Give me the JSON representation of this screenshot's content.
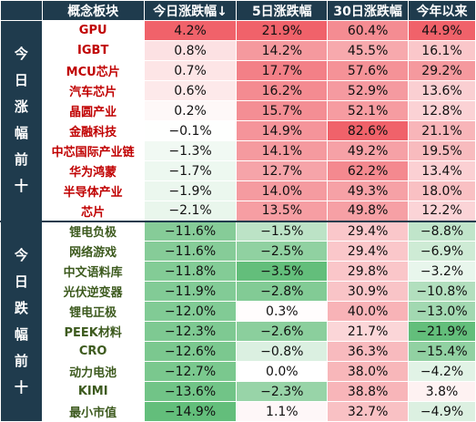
{
  "chart_data": {
    "type": "table",
    "columns": [
      "概念板块",
      "今日涨跌幅↓",
      "5日涨跌幅",
      "30日涨跌幅",
      "今年以来"
    ],
    "groups": [
      {
        "label": [
          "今",
          "日",
          "涨",
          "幅",
          "前",
          "十"
        ],
        "name_color": "#c00000",
        "rows": [
          {
            "name": "GPU",
            "values": [
              4.2,
              21.9,
              60.4,
              44.9
            ]
          },
          {
            "name": "IGBT",
            "values": [
              0.8,
              14.2,
              45.5,
              16.1
            ]
          },
          {
            "name": "MCU芯片",
            "values": [
              0.7,
              17.7,
              57.6,
              29.2
            ]
          },
          {
            "name": "汽车芯片",
            "values": [
              0.6,
              16.2,
              52.9,
              13.6
            ]
          },
          {
            "name": "晶圆产业",
            "values": [
              0.2,
              15.7,
              52.1,
              12.8
            ]
          },
          {
            "name": "金融科技",
            "values": [
              -0.1,
              14.9,
              82.6,
              21.1
            ]
          },
          {
            "name": "中芯国际产业链",
            "values": [
              -1.3,
              14.1,
              49.2,
              19.5
            ]
          },
          {
            "name": "华为鸿蒙",
            "values": [
              -1.7,
              12.7,
              62.2,
              13.4
            ]
          },
          {
            "name": "半导体产业",
            "values": [
              -1.9,
              14.0,
              49.3,
              18.0
            ]
          },
          {
            "name": "芯片",
            "values": [
              -2.1,
              13.5,
              49.8,
              12.2
            ]
          }
        ]
      },
      {
        "label": [
          "今",
          "日",
          "跌",
          "幅",
          "前",
          "十"
        ],
        "name_color": "#3d5a1e",
        "rows": [
          {
            "name": "锂电负极",
            "values": [
              -11.6,
              -1.5,
              29.4,
              -8.8
            ]
          },
          {
            "name": "网络游戏",
            "values": [
              -11.6,
              -2.5,
              29.4,
              -6.9
            ]
          },
          {
            "name": "中文语料库",
            "values": [
              -11.8,
              -3.5,
              29.8,
              -3.2
            ]
          },
          {
            "name": "光伏逆变器",
            "values": [
              -11.9,
              -2.8,
              30.9,
              -10.8
            ]
          },
          {
            "name": "锂电正极",
            "values": [
              -12.0,
              0.3,
              40.0,
              -13.0
            ]
          },
          {
            "name": "PEEK材料",
            "values": [
              -12.3,
              -2.6,
              21.7,
              -21.9
            ]
          },
          {
            "name": "CRO",
            "values": [
              -12.6,
              -0.8,
              36.3,
              -15.4
            ]
          },
          {
            "name": "动力电池",
            "values": [
              -12.7,
              0.0,
              38.0,
              -4.2
            ]
          },
          {
            "name": "KIMI",
            "values": [
              -13.6,
              -2.3,
              38.8,
              3.8
            ]
          },
          {
            "name": "最小市值",
            "values": [
              -14.9,
              1.1,
              32.7,
              -4.9
            ]
          }
        ]
      }
    ],
    "value_format": "percent_1dp",
    "colors": {
      "header_bg": "#1f3b4d",
      "header_text": "#ffffff",
      "positive_max": "#f0626a",
      "negative_max": "#63be7b",
      "neutral": "#ffffff"
    }
  }
}
